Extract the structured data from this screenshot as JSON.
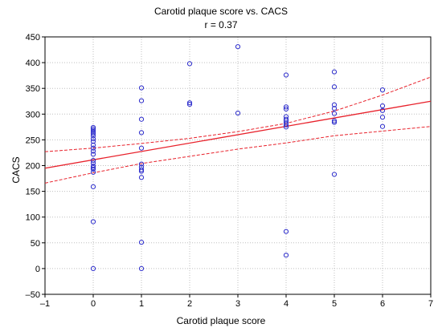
{
  "chart_data": {
    "type": "scatter",
    "title": "Carotid plaque score vs. CACS",
    "subtitle": "r = 0.37",
    "xlabel": "Carotid plaque score",
    "ylabel": "CACS",
    "xlim": [
      -1,
      7
    ],
    "ylim": [
      -50,
      450
    ],
    "xticks": [
      -1,
      0,
      1,
      2,
      3,
      4,
      5,
      6,
      7
    ],
    "yticks": [
      -50,
      0,
      50,
      100,
      150,
      200,
      250,
      300,
      350,
      400,
      450
    ],
    "grid": true,
    "series": [
      {
        "points": [
          [
            0,
            274
          ],
          [
            0,
            271
          ],
          [
            0,
            268
          ],
          [
            0,
            265
          ],
          [
            0,
            262
          ],
          [
            0,
            258
          ],
          [
            0,
            252
          ],
          [
            0,
            247
          ],
          [
            0,
            240
          ],
          [
            0,
            234
          ],
          [
            0,
            228
          ],
          [
            0,
            222
          ],
          [
            0,
            210
          ],
          [
            0,
            205
          ],
          [
            0,
            199
          ],
          [
            0,
            196
          ],
          [
            0,
            193
          ],
          [
            0,
            187
          ],
          [
            0,
            159
          ],
          [
            0,
            91
          ],
          [
            0,
            0
          ],
          [
            1,
            351
          ],
          [
            1,
            326
          ],
          [
            1,
            290
          ],
          [
            1,
            264
          ],
          [
            1,
            234
          ],
          [
            1,
            203
          ],
          [
            1,
            197
          ],
          [
            1,
            192
          ],
          [
            1,
            189
          ],
          [
            1,
            177
          ],
          [
            1,
            51
          ],
          [
            1,
            0
          ],
          [
            2,
            398
          ],
          [
            2,
            322
          ],
          [
            2,
            319
          ],
          [
            3,
            431
          ],
          [
            3,
            302
          ],
          [
            4,
            376
          ],
          [
            4,
            314
          ],
          [
            4,
            310
          ],
          [
            4,
            295
          ],
          [
            4,
            290
          ],
          [
            4,
            287
          ],
          [
            4,
            283
          ],
          [
            4,
            279
          ],
          [
            4,
            275
          ],
          [
            4,
            72
          ],
          [
            4,
            26
          ],
          [
            5,
            382
          ],
          [
            5,
            353
          ],
          [
            5,
            318
          ],
          [
            5,
            311
          ],
          [
            5,
            301
          ],
          [
            5,
            287
          ],
          [
            5,
            284
          ],
          [
            5,
            183
          ],
          [
            6,
            347
          ],
          [
            6,
            316
          ],
          [
            6,
            307
          ],
          [
            6,
            294
          ],
          [
            6,
            276
          ]
        ]
      }
    ],
    "fit_line": {
      "x": [
        -1,
        7
      ],
      "y": [
        195,
        325
      ]
    },
    "confidence_band": {
      "upper": {
        "x": [
          -1,
          0,
          1,
          2,
          3,
          4,
          5,
          6,
          7
        ],
        "y": [
          227,
          234,
          243,
          253,
          266,
          282,
          306,
          337,
          372
        ]
      },
      "lower": {
        "x": [
          -1,
          0,
          1,
          2,
          3,
          4,
          5,
          6,
          7
        ],
        "y": [
          166,
          186,
          204,
          218,
          232,
          244,
          258,
          267,
          276
        ]
      }
    },
    "colors": {
      "points": "#2c2ccc",
      "fit": "#e8202a",
      "grid": "#bfbfbf"
    }
  }
}
